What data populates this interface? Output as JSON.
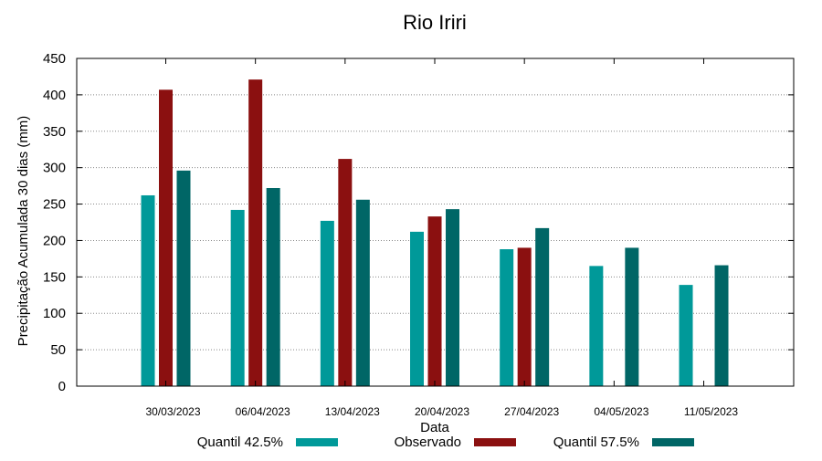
{
  "chart_data": {
    "type": "bar",
    "title": "Rio Iriri",
    "xlabel": "Data",
    "ylabel": "Precipitação Acumulada 30 dias (mm)",
    "ylim": [
      0,
      450
    ],
    "yticks": [
      0,
      50,
      100,
      150,
      200,
      250,
      300,
      350,
      400,
      450
    ],
    "grid": true,
    "legend_position": "bottom",
    "categories": [
      "30/03/2023",
      "06/04/2023",
      "13/04/2023",
      "20/04/2023",
      "27/04/2023",
      "04/05/2023",
      "11/05/2023"
    ],
    "series": [
      {
        "name": "Quantil 42.5%",
        "color": "#009999",
        "values": [
          262,
          242,
          227,
          212,
          188,
          165,
          139
        ]
      },
      {
        "name": "Observado",
        "color": "#8b1010",
        "values": [
          407,
          421,
          312,
          233,
          190,
          null,
          null
        ]
      },
      {
        "name": "Quantil 57.5%",
        "color": "#006666",
        "values": [
          296,
          272,
          256,
          243,
          217,
          190,
          166
        ]
      }
    ]
  }
}
